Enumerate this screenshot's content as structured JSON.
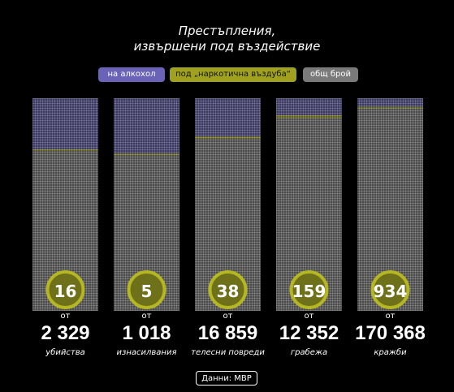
{
  "title_line1": "Престъпления,",
  "title_line2": "извършени под въздействие",
  "legend": {
    "alcohol": "на алкохол",
    "drugs": "под „наркотична въздуба“",
    "total": "общ брой"
  },
  "of_label": "от",
  "source": "Данни: МВР",
  "colors": {
    "alcohol": "#6a63b7",
    "drugs": "#b4b723",
    "total": "#8a8a8a",
    "circle_ring": "#b4b723",
    "circle_fill": "#6f701a"
  },
  "chart_data": {
    "type": "bar",
    "categories": [
      "убийства",
      "изнасилвания",
      "телесни повреди",
      "грабежа",
      "кражби"
    ],
    "circle_values": [
      16,
      5,
      38,
      159,
      934
    ],
    "circle_labels": [
      "16",
      "5",
      "38",
      "159",
      "934"
    ],
    "total_labels": [
      "2 329",
      "1 018",
      "16 859",
      "12 352",
      "170 368"
    ],
    "totals": [
      2329,
      1018,
      16859,
      12352,
      170368
    ],
    "alcohol_share": [
      0.24,
      0.26,
      0.18,
      0.08,
      0.04
    ],
    "drug_share": [
      0.007,
      0.005,
      0.01,
      0.013,
      0.0055
    ]
  }
}
